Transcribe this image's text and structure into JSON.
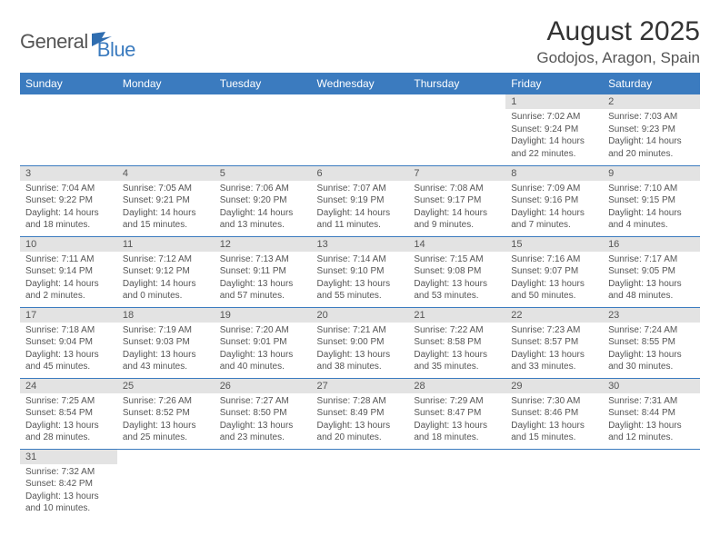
{
  "logo": {
    "text1": "General",
    "text2": "Blue",
    "flag_color": "#2f6db0"
  },
  "title": "August 2025",
  "location": "Godojos, Aragon, Spain",
  "colors": {
    "header_bg": "#3b7bbf",
    "header_text": "#ffffff",
    "daynum_bg": "#e3e3e3",
    "cell_border": "#3b7bbf",
    "body_text": "#555555",
    "title_text": "#333333"
  },
  "weekdays": [
    "Sunday",
    "Monday",
    "Tuesday",
    "Wednesday",
    "Thursday",
    "Friday",
    "Saturday"
  ],
  "weeks": [
    [
      null,
      null,
      null,
      null,
      null,
      {
        "d": "1",
        "sr": "7:02 AM",
        "ss": "9:24 PM",
        "dl": "14 hours and 22 minutes."
      },
      {
        "d": "2",
        "sr": "7:03 AM",
        "ss": "9:23 PM",
        "dl": "14 hours and 20 minutes."
      }
    ],
    [
      {
        "d": "3",
        "sr": "7:04 AM",
        "ss": "9:22 PM",
        "dl": "14 hours and 18 minutes."
      },
      {
        "d": "4",
        "sr": "7:05 AM",
        "ss": "9:21 PM",
        "dl": "14 hours and 15 minutes."
      },
      {
        "d": "5",
        "sr": "7:06 AM",
        "ss": "9:20 PM",
        "dl": "14 hours and 13 minutes."
      },
      {
        "d": "6",
        "sr": "7:07 AM",
        "ss": "9:19 PM",
        "dl": "14 hours and 11 minutes."
      },
      {
        "d": "7",
        "sr": "7:08 AM",
        "ss": "9:17 PM",
        "dl": "14 hours and 9 minutes."
      },
      {
        "d": "8",
        "sr": "7:09 AM",
        "ss": "9:16 PM",
        "dl": "14 hours and 7 minutes."
      },
      {
        "d": "9",
        "sr": "7:10 AM",
        "ss": "9:15 PM",
        "dl": "14 hours and 4 minutes."
      }
    ],
    [
      {
        "d": "10",
        "sr": "7:11 AM",
        "ss": "9:14 PM",
        "dl": "14 hours and 2 minutes."
      },
      {
        "d": "11",
        "sr": "7:12 AM",
        "ss": "9:12 PM",
        "dl": "14 hours and 0 minutes."
      },
      {
        "d": "12",
        "sr": "7:13 AM",
        "ss": "9:11 PM",
        "dl": "13 hours and 57 minutes."
      },
      {
        "d": "13",
        "sr": "7:14 AM",
        "ss": "9:10 PM",
        "dl": "13 hours and 55 minutes."
      },
      {
        "d": "14",
        "sr": "7:15 AM",
        "ss": "9:08 PM",
        "dl": "13 hours and 53 minutes."
      },
      {
        "d": "15",
        "sr": "7:16 AM",
        "ss": "9:07 PM",
        "dl": "13 hours and 50 minutes."
      },
      {
        "d": "16",
        "sr": "7:17 AM",
        "ss": "9:05 PM",
        "dl": "13 hours and 48 minutes."
      }
    ],
    [
      {
        "d": "17",
        "sr": "7:18 AM",
        "ss": "9:04 PM",
        "dl": "13 hours and 45 minutes."
      },
      {
        "d": "18",
        "sr": "7:19 AM",
        "ss": "9:03 PM",
        "dl": "13 hours and 43 minutes."
      },
      {
        "d": "19",
        "sr": "7:20 AM",
        "ss": "9:01 PM",
        "dl": "13 hours and 40 minutes."
      },
      {
        "d": "20",
        "sr": "7:21 AM",
        "ss": "9:00 PM",
        "dl": "13 hours and 38 minutes."
      },
      {
        "d": "21",
        "sr": "7:22 AM",
        "ss": "8:58 PM",
        "dl": "13 hours and 35 minutes."
      },
      {
        "d": "22",
        "sr": "7:23 AM",
        "ss": "8:57 PM",
        "dl": "13 hours and 33 minutes."
      },
      {
        "d": "23",
        "sr": "7:24 AM",
        "ss": "8:55 PM",
        "dl": "13 hours and 30 minutes."
      }
    ],
    [
      {
        "d": "24",
        "sr": "7:25 AM",
        "ss": "8:54 PM",
        "dl": "13 hours and 28 minutes."
      },
      {
        "d": "25",
        "sr": "7:26 AM",
        "ss": "8:52 PM",
        "dl": "13 hours and 25 minutes."
      },
      {
        "d": "26",
        "sr": "7:27 AM",
        "ss": "8:50 PM",
        "dl": "13 hours and 23 minutes."
      },
      {
        "d": "27",
        "sr": "7:28 AM",
        "ss": "8:49 PM",
        "dl": "13 hours and 20 minutes."
      },
      {
        "d": "28",
        "sr": "7:29 AM",
        "ss": "8:47 PM",
        "dl": "13 hours and 18 minutes."
      },
      {
        "d": "29",
        "sr": "7:30 AM",
        "ss": "8:46 PM",
        "dl": "13 hours and 15 minutes."
      },
      {
        "d": "30",
        "sr": "7:31 AM",
        "ss": "8:44 PM",
        "dl": "13 hours and 12 minutes."
      }
    ],
    [
      {
        "d": "31",
        "sr": "7:32 AM",
        "ss": "8:42 PM",
        "dl": "13 hours and 10 minutes."
      },
      null,
      null,
      null,
      null,
      null,
      null
    ]
  ],
  "labels": {
    "sunrise": "Sunrise:",
    "sunset": "Sunset:",
    "daylight": "Daylight:"
  }
}
